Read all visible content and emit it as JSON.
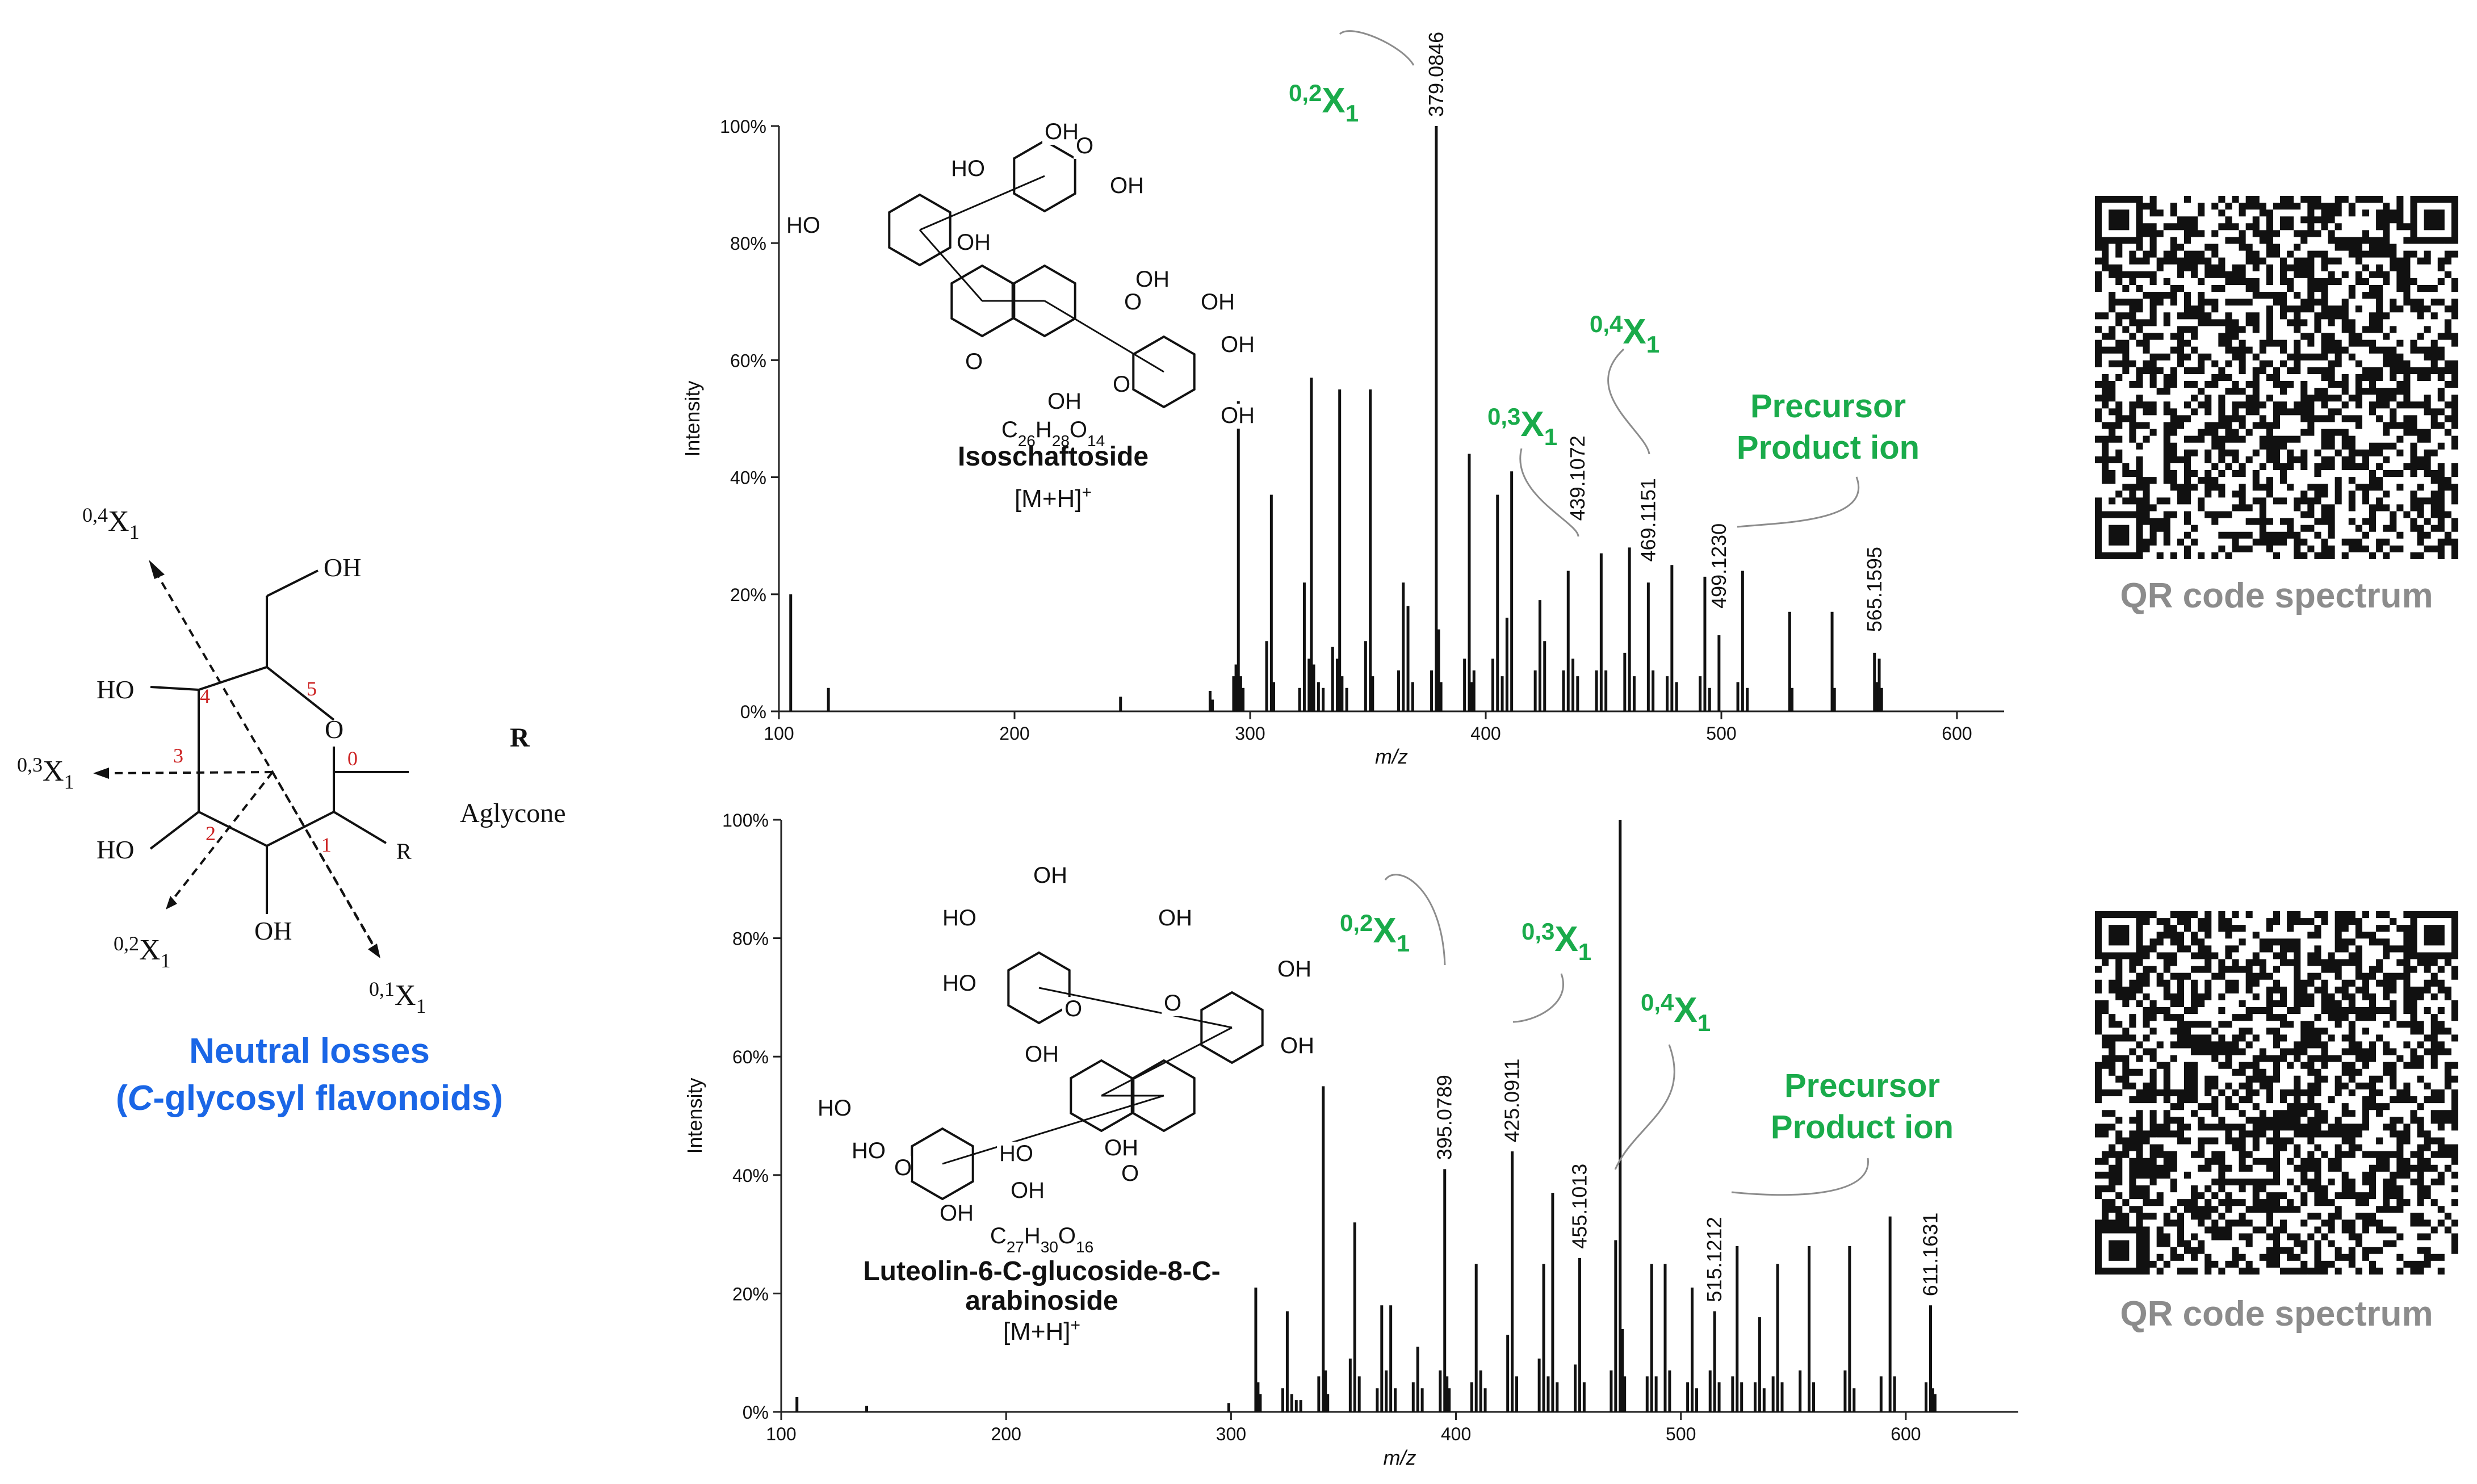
{
  "left_panel": {
    "ring_label_04": "0,4X1",
    "ring_label_03": "0,3X1",
    "ring_label_02": "0,2X1",
    "ring_label_01": "0,1X1",
    "oh_top": "OH",
    "ho_upper": "HO",
    "ho_lower": "HO",
    "oh_bottom": "OH",
    "ring_o": "O",
    "r_group": "R",
    "r_heading": "R",
    "aglycone": "Aglycone",
    "pos_0": "0",
    "pos_1": "1",
    "pos_2": "2",
    "pos_3": "3",
    "pos_4": "4",
    "pos_5": "5",
    "caption_line1": "Neutral losses",
    "caption_line2_prefix": "(",
    "caption_line2_italic": "C",
    "caption_line2_rest": "-glycosyl flavonoids)"
  },
  "qr_codes": [
    {
      "caption": "QR code spectrum"
    },
    {
      "caption": "QR code spectrum"
    }
  ],
  "colors": {
    "green": "#1aab4b",
    "blue": "#1a66e6",
    "grey": "#8c8c8c",
    "red": "#cc2222",
    "black": "#111111"
  },
  "chart_data": [
    {
      "type": "bar",
      "title": "Isoschaftoside",
      "formula": "C26H28O14",
      "adduct": "[M+H]+",
      "xlabel": "m/z",
      "ylabel": "Intensity",
      "xlim": [
        100,
        620
      ],
      "ylim": [
        0,
        100
      ],
      "xticks": [
        100,
        200,
        300,
        400,
        500,
        600
      ],
      "yticks": [
        "0%",
        "20%",
        "40%",
        "60%",
        "80%",
        "100%"
      ],
      "peaks": [
        {
          "mz": 105,
          "i": 20
        },
        {
          "mz": 121,
          "i": 4
        },
        {
          "mz": 245,
          "i": 2.5
        },
        {
          "mz": 283,
          "i": 3.5
        },
        {
          "mz": 284,
          "i": 2
        },
        {
          "mz": 293,
          "i": 6
        },
        {
          "mz": 294,
          "i": 8
        },
        {
          "mz": 295,
          "i": 53
        },
        {
          "mz": 296,
          "i": 6
        },
        {
          "mz": 297,
          "i": 4
        },
        {
          "mz": 307,
          "i": 12
        },
        {
          "mz": 309,
          "i": 37
        },
        {
          "mz": 310,
          "i": 5
        },
        {
          "mz": 321,
          "i": 4
        },
        {
          "mz": 323,
          "i": 22
        },
        {
          "mz": 325,
          "i": 9
        },
        {
          "mz": 326,
          "i": 57
        },
        {
          "mz": 327,
          "i": 8
        },
        {
          "mz": 329,
          "i": 5
        },
        {
          "mz": 331,
          "i": 4
        },
        {
          "mz": 335,
          "i": 11
        },
        {
          "mz": 337,
          "i": 9
        },
        {
          "mz": 338,
          "i": 55
        },
        {
          "mz": 339,
          "i": 6
        },
        {
          "mz": 341,
          "i": 4
        },
        {
          "mz": 349,
          "i": 12
        },
        {
          "mz": 351,
          "i": 55
        },
        {
          "mz": 352,
          "i": 6
        },
        {
          "mz": 363,
          "i": 7
        },
        {
          "mz": 365,
          "i": 22
        },
        {
          "mz": 367,
          "i": 18
        },
        {
          "mz": 369,
          "i": 5
        },
        {
          "mz": 377,
          "i": 7
        },
        {
          "mz": 379,
          "i": 100
        },
        {
          "mz": 380,
          "i": 14
        },
        {
          "mz": 381,
          "i": 5
        },
        {
          "mz": 391,
          "i": 9
        },
        {
          "mz": 393,
          "i": 44
        },
        {
          "mz": 394,
          "i": 5
        },
        {
          "mz": 395,
          "i": 7
        },
        {
          "mz": 403,
          "i": 9
        },
        {
          "mz": 405,
          "i": 37
        },
        {
          "mz": 407,
          "i": 6
        },
        {
          "mz": 409,
          "i": 16
        },
        {
          "mz": 411,
          "i": 41
        },
        {
          "mz": 421,
          "i": 7
        },
        {
          "mz": 423,
          "i": 19
        },
        {
          "mz": 425,
          "i": 12
        },
        {
          "mz": 433,
          "i": 7
        },
        {
          "mz": 435,
          "i": 24
        },
        {
          "mz": 437,
          "i": 9
        },
        {
          "mz": 439,
          "i": 6
        },
        {
          "mz": 447,
          "i": 7
        },
        {
          "mz": 449,
          "i": 27
        },
        {
          "mz": 451,
          "i": 7
        },
        {
          "mz": 459,
          "i": 10
        },
        {
          "mz": 461,
          "i": 28
        },
        {
          "mz": 463,
          "i": 6
        },
        {
          "mz": 469,
          "i": 22
        },
        {
          "mz": 471,
          "i": 7
        },
        {
          "mz": 477,
          "i": 6
        },
        {
          "mz": 479,
          "i": 25
        },
        {
          "mz": 481,
          "i": 5
        },
        {
          "mz": 491,
          "i": 6
        },
        {
          "mz": 493,
          "i": 23
        },
        {
          "mz": 495,
          "i": 4
        },
        {
          "mz": 499,
          "i": 13
        },
        {
          "mz": 507,
          "i": 5
        },
        {
          "mz": 509,
          "i": 24
        },
        {
          "mz": 511,
          "i": 4
        },
        {
          "mz": 529,
          "i": 17
        },
        {
          "mz": 530,
          "i": 4
        },
        {
          "mz": 547,
          "i": 17
        },
        {
          "mz": 548,
          "i": 4
        },
        {
          "mz": 565,
          "i": 10
        },
        {
          "mz": 566,
          "i": 5
        },
        {
          "mz": 567,
          "i": 9
        },
        {
          "mz": 568,
          "i": 4
        }
      ],
      "peak_labels": [
        {
          "mz": 379,
          "text": "379.0846",
          "y": 100
        },
        {
          "mz": 439,
          "text": "439.1072",
          "y": 31
        },
        {
          "mz": 469,
          "text": "469.1151",
          "y": 24
        },
        {
          "mz": 499,
          "text": "499.1230",
          "y": 16
        },
        {
          "mz": 565,
          "text": "565.1595",
          "y": 12
        }
      ],
      "annotations": [
        {
          "sup": "0,2",
          "base": "X",
          "sub": "1",
          "kind": "fragment"
        },
        {
          "sup": "0,3",
          "base": "X",
          "sub": "1",
          "kind": "fragment"
        },
        {
          "sup": "0,4",
          "base": "X",
          "sub": "1",
          "kind": "fragment"
        }
      ],
      "precursor_label": [
        "Precursor",
        "Product ion"
      ],
      "structure_labels": [
        "HO",
        "HO",
        "OH",
        "HO",
        "O",
        "OH",
        "O",
        "OH",
        "O",
        "OH",
        "OH",
        "OH",
        "OH",
        "O",
        "OH"
      ]
    },
    {
      "type": "bar",
      "title": "Luteolin-6-C-glucoside-8-C-arabinoside",
      "title_line1": "Luteolin-6-C-glucoside-8-C-",
      "title_line2": "arabinoside",
      "formula": "C27H30O16",
      "adduct": "[M+H]+",
      "xlabel": "m/z",
      "ylabel": "Intensity",
      "xlim": [
        100,
        650
      ],
      "ylim": [
        0,
        100
      ],
      "xticks": [
        100,
        200,
        300,
        400,
        500,
        600
      ],
      "yticks": [
        "0%",
        "20%",
        "40%",
        "60%",
        "80%",
        "100%"
      ],
      "peaks": [
        {
          "mz": 107,
          "i": 2.5
        },
        {
          "mz": 138,
          "i": 1
        },
        {
          "mz": 299,
          "i": 1.5
        },
        {
          "mz": 311,
          "i": 21
        },
        {
          "mz": 312,
          "i": 5
        },
        {
          "mz": 313,
          "i": 3
        },
        {
          "mz": 323,
          "i": 4
        },
        {
          "mz": 325,
          "i": 17
        },
        {
          "mz": 327,
          "i": 3
        },
        {
          "mz": 329,
          "i": 2
        },
        {
          "mz": 331,
          "i": 2
        },
        {
          "mz": 339,
          "i": 6
        },
        {
          "mz": 341,
          "i": 55
        },
        {
          "mz": 342,
          "i": 7
        },
        {
          "mz": 343,
          "i": 3
        },
        {
          "mz": 353,
          "i": 9
        },
        {
          "mz": 355,
          "i": 32
        },
        {
          "mz": 357,
          "i": 6
        },
        {
          "mz": 365,
          "i": 4
        },
        {
          "mz": 367,
          "i": 18
        },
        {
          "mz": 369,
          "i": 7
        },
        {
          "mz": 371,
          "i": 18
        },
        {
          "mz": 373,
          "i": 4
        },
        {
          "mz": 381,
          "i": 5
        },
        {
          "mz": 383,
          "i": 11
        },
        {
          "mz": 385,
          "i": 4
        },
        {
          "mz": 393,
          "i": 7
        },
        {
          "mz": 395,
          "i": 41
        },
        {
          "mz": 396,
          "i": 6
        },
        {
          "mz": 397,
          "i": 4
        },
        {
          "mz": 407,
          "i": 5
        },
        {
          "mz": 409,
          "i": 25
        },
        {
          "mz": 411,
          "i": 7
        },
        {
          "mz": 413,
          "i": 4
        },
        {
          "mz": 423,
          "i": 13
        },
        {
          "mz": 425,
          "i": 44
        },
        {
          "mz": 427,
          "i": 6
        },
        {
          "mz": 437,
          "i": 9
        },
        {
          "mz": 439,
          "i": 25
        },
        {
          "mz": 441,
          "i": 6
        },
        {
          "mz": 443,
          "i": 37
        },
        {
          "mz": 445,
          "i": 5
        },
        {
          "mz": 453,
          "i": 8
        },
        {
          "mz": 455,
          "i": 26
        },
        {
          "mz": 457,
          "i": 5
        },
        {
          "mz": 469,
          "i": 7
        },
        {
          "mz": 471,
          "i": 29
        },
        {
          "mz": 473,
          "i": 100
        },
        {
          "mz": 474,
          "i": 14
        },
        {
          "mz": 475,
          "i": 6
        },
        {
          "mz": 485,
          "i": 6
        },
        {
          "mz": 487,
          "i": 25
        },
        {
          "mz": 489,
          "i": 6
        },
        {
          "mz": 493,
          "i": 25
        },
        {
          "mz": 495,
          "i": 7
        },
        {
          "mz": 503,
          "i": 5
        },
        {
          "mz": 505,
          "i": 21
        },
        {
          "mz": 507,
          "i": 4
        },
        {
          "mz": 513,
          "i": 7
        },
        {
          "mz": 515,
          "i": 17
        },
        {
          "mz": 517,
          "i": 5
        },
        {
          "mz": 523,
          "i": 6
        },
        {
          "mz": 525,
          "i": 28
        },
        {
          "mz": 527,
          "i": 5
        },
        {
          "mz": 533,
          "i": 5
        },
        {
          "mz": 535,
          "i": 16
        },
        {
          "mz": 537,
          "i": 4
        },
        {
          "mz": 541,
          "i": 6
        },
        {
          "mz": 543,
          "i": 25
        },
        {
          "mz": 545,
          "i": 5
        },
        {
          "mz": 553,
          "i": 7
        },
        {
          "mz": 557,
          "i": 28
        },
        {
          "mz": 559,
          "i": 5
        },
        {
          "mz": 573,
          "i": 7
        },
        {
          "mz": 575,
          "i": 28
        },
        {
          "mz": 577,
          "i": 4
        },
        {
          "mz": 589,
          "i": 6
        },
        {
          "mz": 593,
          "i": 33
        },
        {
          "mz": 595,
          "i": 6
        },
        {
          "mz": 609,
          "i": 5
        },
        {
          "mz": 611,
          "i": 18
        },
        {
          "mz": 612,
          "i": 4
        },
        {
          "mz": 613,
          "i": 3
        }
      ],
      "peak_labels": [
        {
          "mz": 395,
          "text": "395.0789",
          "y": 41
        },
        {
          "mz": 425,
          "text": "425.0911",
          "y": 44
        },
        {
          "mz": 455,
          "text": "455.1013",
          "y": 26
        },
        {
          "mz": 515,
          "text": "515.1212",
          "y": 17
        },
        {
          "mz": 611,
          "text": "611.1631",
          "y": 18
        }
      ],
      "annotations": [
        {
          "sup": "0,2",
          "base": "X",
          "sub": "1",
          "kind": "fragment"
        },
        {
          "sup": "0,3",
          "base": "X",
          "sub": "1",
          "kind": "fragment"
        },
        {
          "sup": "0,4",
          "base": "X",
          "sub": "1",
          "kind": "fragment"
        }
      ],
      "precursor_label": [
        "Precursor",
        "Product ion"
      ],
      "structure_labels": [
        "OH",
        "HO",
        "OH",
        "HO",
        "O",
        "OH",
        "O",
        "OH",
        "OH",
        "HO",
        "O",
        "OH",
        "HO",
        "O",
        "OH",
        "OH",
        "HO"
      ]
    }
  ]
}
